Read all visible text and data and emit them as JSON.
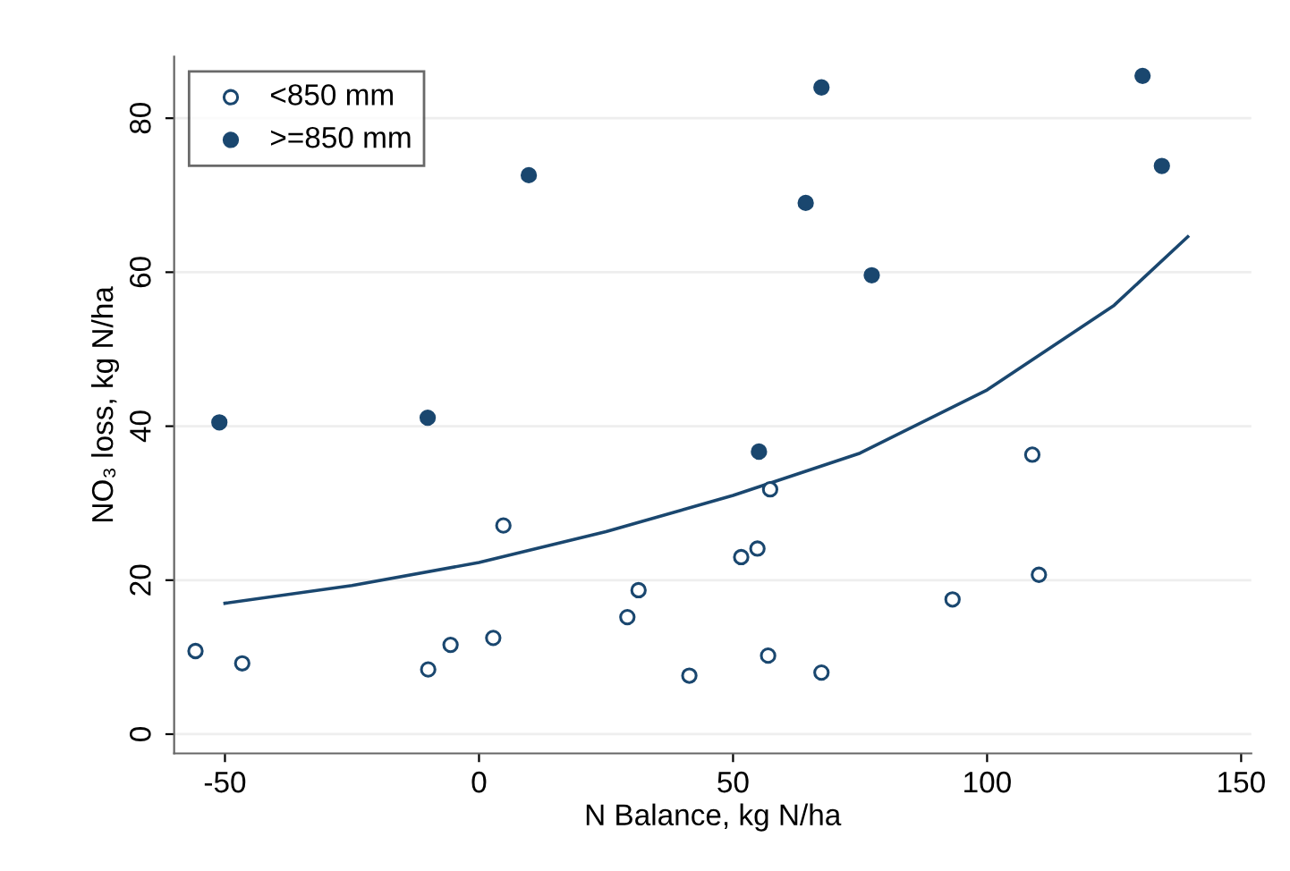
{
  "chart_data": {
    "type": "scatter",
    "xlabel": "N Balance, kg N/ha",
    "ylabel": "NO₃ loss, kg N/ha",
    "xlim": [
      -60,
      152
    ],
    "ylim": [
      -2.5,
      88
    ],
    "xticks": [
      -50,
      0,
      50,
      100,
      150
    ],
    "yticks": [
      0,
      20,
      40,
      60,
      80
    ],
    "grid": "y",
    "legend": "top left",
    "series": [
      {
        "name": "<850 mm",
        "marker": "circle",
        "color": "#1a476f",
        "x": [
          -55.8,
          -46.6,
          -10.0,
          -5.6,
          2.8,
          4.8,
          29.2,
          31.4,
          41.4,
          57.3,
          51.6,
          54.8,
          56.9,
          67.4,
          93.2,
          108.9,
          110.2
        ],
        "values": [
          10.8,
          9.2,
          8.4,
          11.6,
          12.5,
          27.1,
          15.2,
          18.7,
          7.6,
          31.8,
          23.0,
          24.1,
          10.2,
          8.0,
          17.5,
          36.3,
          20.7
        ]
      },
      {
        "name": ">=850 mm",
        "marker": "circle",
        "color": "#1a476f",
        "x": [
          -51.1,
          -10.1,
          9.8,
          55.1,
          67.4,
          64.3,
          77.3,
          130.6,
          134.4
        ],
        "values": [
          40.5,
          41.1,
          72.6,
          36.7,
          84.0,
          69.0,
          59.6,
          85.5,
          73.8
        ]
      },
      {
        "type": "line",
        "marker": "none",
        "color": "#1a476f",
        "line_style": "solid",
        "x": [
          -50,
          -25,
          0,
          25,
          50,
          75,
          100,
          125,
          139.5
        ],
        "values": [
          17.0,
          19.3,
          22.3,
          26.3,
          31.0,
          36.5,
          44.7,
          55.7,
          64.6
        ]
      }
    ]
  }
}
